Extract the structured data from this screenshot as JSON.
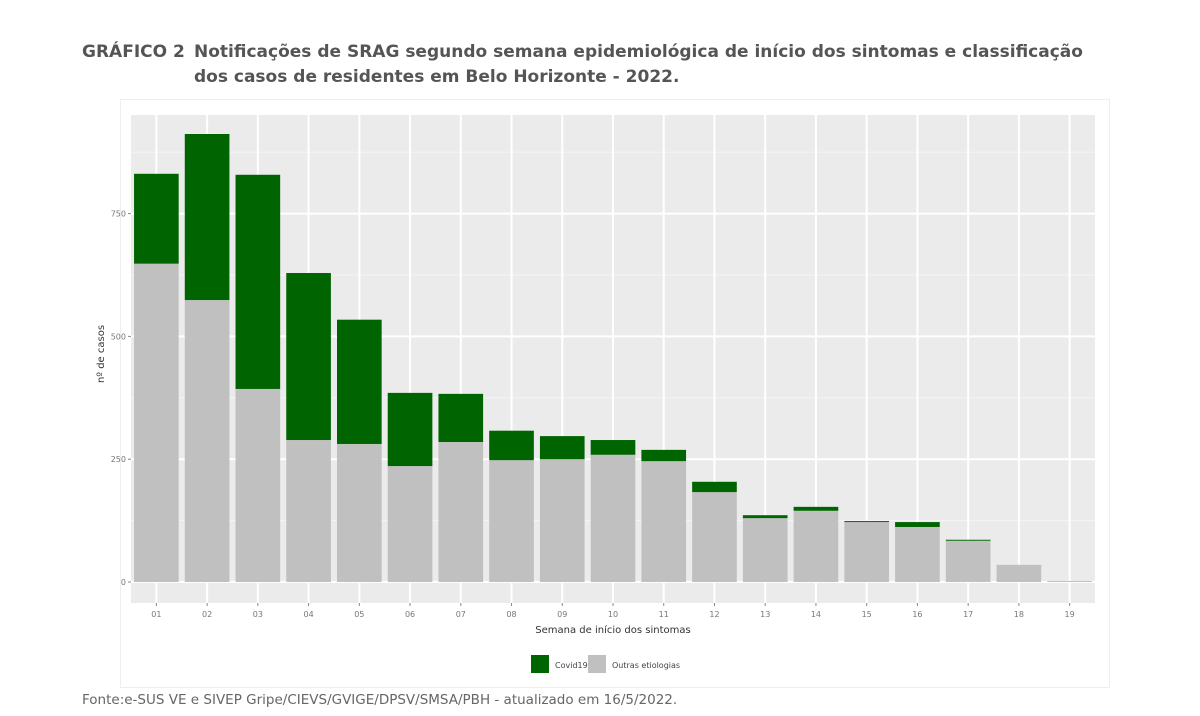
{
  "title": {
    "number": "GRÁFICO 2",
    "line1": "Notificações de SRAG segundo semana epidemiológica de início dos sintomas e classificação",
    "line2": "dos casos de residentes em Belo Horizonte - 2022."
  },
  "source": "Fonte:e-SUS VE e SIVEP Gripe/CIEVS/GVIGE/DPSV/SMSA/PBH - atualizado em 16/5/2022.",
  "chart_data": {
    "type": "bar",
    "stacked": true,
    "xlabel": "Semana de início dos sintomas",
    "ylabel": "nº de casos",
    "ylim": [
      0,
      912
    ],
    "yticks": [
      0,
      250,
      500,
      750
    ],
    "grid": true,
    "legend_position": "bottom",
    "categories": [
      "01",
      "02",
      "03",
      "04",
      "05",
      "06",
      "07",
      "08",
      "09",
      "10",
      "11",
      "12",
      "13",
      "14",
      "15",
      "16",
      "17",
      "18",
      "19"
    ],
    "series": [
      {
        "name": "Outras etiologias",
        "color": "#c0c0c0",
        "values": [
          648,
          574,
          393,
          289,
          281,
          236,
          285,
          248,
          250,
          259,
          246,
          183,
          130,
          145,
          122,
          112,
          84,
          35,
          2
        ]
      },
      {
        "name": "Covid19",
        "color": "#006400",
        "values": [
          183,
          338,
          436,
          340,
          253,
          149,
          98,
          60,
          47,
          30,
          23,
          21,
          6,
          8,
          2,
          10,
          2,
          0,
          0
        ]
      }
    ]
  }
}
